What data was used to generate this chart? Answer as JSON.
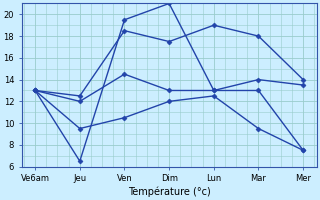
{
  "title": "",
  "xlabel": "Température (°c)",
  "ylabel": "",
  "background_color": "#cceeff",
  "grid_color": "#99cccc",
  "line_color": "#2244aa",
  "x_labels": [
    "Ve6am",
    "Jeu",
    "Ven",
    "Dim",
    "Lun",
    "Mar",
    "Mer"
  ],
  "x_positions": [
    0,
    1,
    2,
    3,
    4,
    5,
    6
  ],
  "ylim": [
    6,
    21
  ],
  "yticks": [
    6,
    8,
    10,
    12,
    14,
    16,
    18,
    20
  ],
  "series": [
    [
      13.0,
      6.5,
      19.5,
      21.0,
      13.0,
      13.0,
      7.5
    ],
    [
      13.0,
      12.5,
      18.5,
      17.5,
      19.0,
      18.0,
      14.0
    ],
    [
      13.0,
      12.0,
      14.5,
      13.0,
      13.0,
      14.0,
      13.5
    ],
    [
      13.0,
      9.5,
      10.5,
      12.0,
      12.5,
      9.5,
      7.5
    ]
  ],
  "marker_size": 2.5,
  "linewidth": 1.0,
  "tick_fontsize": 6,
  "xlabel_fontsize": 7
}
